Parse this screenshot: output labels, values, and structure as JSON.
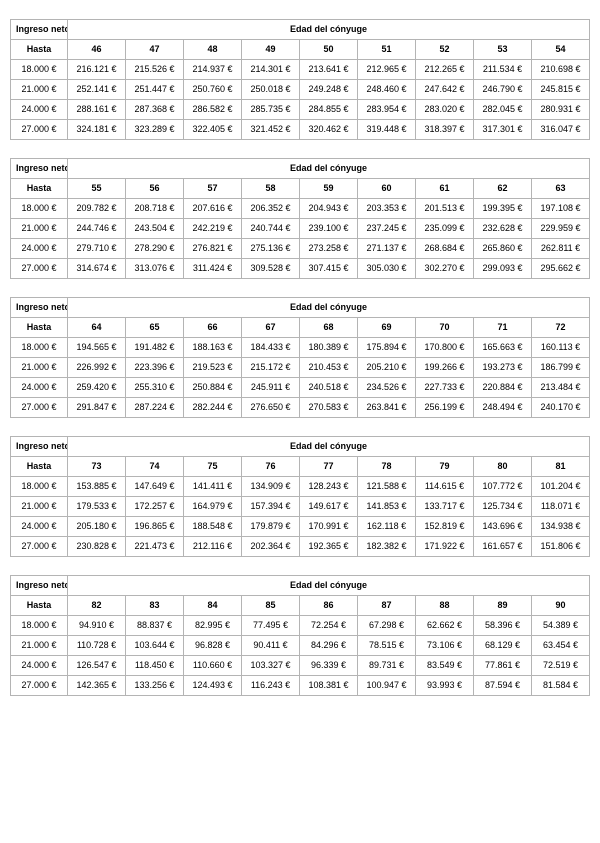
{
  "tables": [
    {
      "corner_label": "Ingreso neto",
      "header_label": "Edad del cónyuge",
      "row_header": "Hasta",
      "ages": [
        "46",
        "47",
        "48",
        "49",
        "50",
        "51",
        "52",
        "53",
        "54"
      ],
      "rows": [
        {
          "label": "18.000 €",
          "values": [
            "216.121 €",
            "215.526 €",
            "214.937 €",
            "214.301 €",
            "213.641 €",
            "212.965 €",
            "212.265 €",
            "211.534 €",
            "210.698 €"
          ]
        },
        {
          "label": "21.000 €",
          "values": [
            "252.141 €",
            "251.447 €",
            "250.760 €",
            "250.018 €",
            "249.248 €",
            "248.460 €",
            "247.642 €",
            "246.790 €",
            "245.815 €"
          ]
        },
        {
          "label": "24.000 €",
          "values": [
            "288.161 €",
            "287.368 €",
            "286.582 €",
            "285.735 €",
            "284.855 €",
            "283.954 €",
            "283.020 €",
            "282.045 €",
            "280.931 €"
          ]
        },
        {
          "label": "27.000 €",
          "values": [
            "324.181 €",
            "323.289 €",
            "322.405 €",
            "321.452 €",
            "320.462 €",
            "319.448 €",
            "318.397 €",
            "317.301 €",
            "316.047 €"
          ]
        }
      ]
    },
    {
      "corner_label": "Ingreso neto",
      "header_label": "Edad del cónyuge",
      "row_header": "Hasta",
      "ages": [
        "55",
        "56",
        "57",
        "58",
        "59",
        "60",
        "61",
        "62",
        "63"
      ],
      "rows": [
        {
          "label": "18.000 €",
          "values": [
            "209.782 €",
            "208.718 €",
            "207.616 €",
            "206.352 €",
            "204.943 €",
            "203.353 €",
            "201.513 €",
            "199.395 €",
            "197.108 €"
          ]
        },
        {
          "label": "21.000 €",
          "values": [
            "244.746 €",
            "243.504 €",
            "242.219 €",
            "240.744 €",
            "239.100 €",
            "237.245 €",
            "235.099 €",
            "232.628 €",
            "229.959 €"
          ]
        },
        {
          "label": "24.000 €",
          "values": [
            "279.710 €",
            "278.290 €",
            "276.821 €",
            "275.136 €",
            "273.258 €",
            "271.137 €",
            "268.684 €",
            "265.860 €",
            "262.811 €"
          ]
        },
        {
          "label": "27.000 €",
          "values": [
            "314.674 €",
            "313.076 €",
            "311.424 €",
            "309.528 €",
            "307.415 €",
            "305.030 €",
            "302.270 €",
            "299.093 €",
            "295.662 €"
          ]
        }
      ]
    },
    {
      "corner_label": "Ingreso neto",
      "header_label": "Edad del cónyuge",
      "row_header": "Hasta",
      "ages": [
        "64",
        "65",
        "66",
        "67",
        "68",
        "69",
        "70",
        "71",
        "72"
      ],
      "rows": [
        {
          "label": "18.000 €",
          "values": [
            "194.565 €",
            "191.482 €",
            "188.163 €",
            "184.433 €",
            "180.389 €",
            "175.894 €",
            "170.800 €",
            "165.663 €",
            "160.113 €"
          ]
        },
        {
          "label": "21.000 €",
          "values": [
            "226.992 €",
            "223.396 €",
            "219.523 €",
            "215.172 €",
            "210.453 €",
            "205.210 €",
            "199.266 €",
            "193.273 €",
            "186.799 €"
          ]
        },
        {
          "label": "24.000 €",
          "values": [
            "259.420 €",
            "255.310 €",
            "250.884 €",
            "245.911 €",
            "240.518 €",
            "234.526 €",
            "227.733 €",
            "220.884 €",
            "213.484 €"
          ]
        },
        {
          "label": "27.000 €",
          "values": [
            "291.847 €",
            "287.224 €",
            "282.244 €",
            "276.650 €",
            "270.583 €",
            "263.841 €",
            "256.199 €",
            "248.494 €",
            "240.170 €"
          ]
        }
      ]
    },
    {
      "corner_label": "Ingreso neto",
      "header_label": "Edad del cónyuge",
      "row_header": "Hasta",
      "ages": [
        "73",
        "74",
        "75",
        "76",
        "77",
        "78",
        "79",
        "80",
        "81"
      ],
      "rows": [
        {
          "label": "18.000 €",
          "values": [
            "153.885 €",
            "147.649 €",
            "141.411 €",
            "134.909 €",
            "128.243 €",
            "121.588 €",
            "114.615 €",
            "107.772 €",
            "101.204 €"
          ]
        },
        {
          "label": "21.000 €",
          "values": [
            "179.533 €",
            "172.257 €",
            "164.979 €",
            "157.394 €",
            "149.617 €",
            "141.853 €",
            "133.717 €",
            "125.734 €",
            "118.071 €"
          ]
        },
        {
          "label": "24.000 €",
          "values": [
            "205.180 €",
            "196.865 €",
            "188.548 €",
            "179.879 €",
            "170.991 €",
            "162.118 €",
            "152.819 €",
            "143.696 €",
            "134.938 €"
          ]
        },
        {
          "label": "27.000 €",
          "values": [
            "230.828 €",
            "221.473 €",
            "212.116 €",
            "202.364 €",
            "192.365 €",
            "182.382 €",
            "171.922 €",
            "161.657 €",
            "151.806 €"
          ]
        }
      ]
    },
    {
      "corner_label": "Ingreso neto",
      "header_label": "Edad del cónyuge",
      "row_header": "Hasta",
      "ages": [
        "82",
        "83",
        "84",
        "85",
        "86",
        "87",
        "88",
        "89",
        "90"
      ],
      "rows": [
        {
          "label": "18.000 €",
          "values": [
            "94.910 €",
            "88.837 €",
            "82.995 €",
            "77.495 €",
            "72.254 €",
            "67.298 €",
            "62.662 €",
            "58.396 €",
            "54.389 €"
          ]
        },
        {
          "label": "21.000 €",
          "values": [
            "110.728 €",
            "103.644 €",
            "96.828 €",
            "90.411 €",
            "84.296 €",
            "78.515 €",
            "73.106 €",
            "68.129 €",
            "63.454 €"
          ]
        },
        {
          "label": "24.000 €",
          "values": [
            "126.547 €",
            "118.450 €",
            "110.660 €",
            "103.327 €",
            "96.339 €",
            "89.731 €",
            "83.549 €",
            "77.861 €",
            "72.519 €"
          ]
        },
        {
          "label": "27.000 €",
          "values": [
            "142.365 €",
            "133.256 €",
            "124.493 €",
            "116.243 €",
            "108.381 €",
            "100.947 €",
            "93.993 €",
            "87.594 €",
            "81.584 €"
          ]
        }
      ]
    }
  ]
}
